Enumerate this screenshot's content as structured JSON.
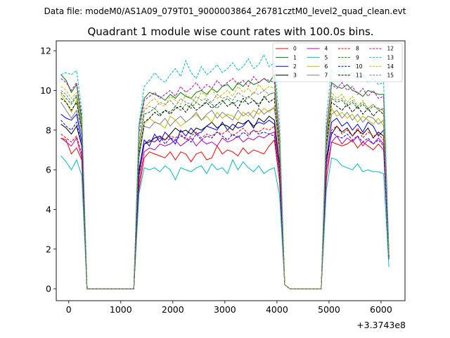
{
  "figure": {
    "suptitle": "Data file: modeM0/AS1A09_079T01_9000003864_26781cztM0_level2_quad_clean.evt"
  },
  "chart_data": {
    "type": "line",
    "title": "Quadrant 1 module wise count rates with 100.0s bins.",
    "xlabel": "",
    "ylabel": "",
    "offset_label": "+3.3743e8",
    "xlim": [
      -240,
      6460
    ],
    "ylim": [
      -0.6,
      12.5
    ],
    "x_ticks": [
      0,
      1000,
      2000,
      3000,
      4000,
      5000,
      6000
    ],
    "x_tick_labels": [
      "0",
      "1000",
      "2000",
      "3000",
      "4000",
      "5000",
      "6000"
    ],
    "y_ticks": [
      0,
      2,
      4,
      6,
      8,
      10,
      12
    ],
    "y_tick_labels": [
      "0",
      "2",
      "4",
      "6",
      "8",
      "10",
      "12"
    ],
    "grid": false,
    "legend_position": "upper-right",
    "legend_columns": 4,
    "x": [
      -150,
      -50,
      50,
      150,
      250,
      350,
      450,
      550,
      650,
      750,
      850,
      950,
      1050,
      1150,
      1250,
      1350,
      1450,
      1550,
      1650,
      1750,
      1850,
      1950,
      2050,
      2150,
      2250,
      2350,
      2450,
      2550,
      2650,
      2750,
      2850,
      2950,
      3050,
      3150,
      3250,
      3350,
      3450,
      3550,
      3650,
      3750,
      3850,
      3950,
      4050,
      4150,
      4250,
      4350,
      4450,
      4550,
      4650,
      4750,
      4850,
      4950,
      5050,
      5150,
      5250,
      5350,
      5450,
      5550,
      5650,
      5750,
      5850,
      5950,
      6050,
      6150
    ],
    "series": [
      {
        "name": "0",
        "color": "#ff0000",
        "dash": "solid",
        "values": [
          7.6,
          7.5,
          6.8,
          7.1,
          6.5,
          0,
          0,
          0,
          0,
          0,
          0,
          0,
          0,
          0,
          0,
          5.0,
          6.6,
          6.9,
          6.8,
          6.7,
          6.6,
          6.9,
          6.5,
          6.9,
          6.8,
          6.4,
          6.8,
          6.9,
          6.5,
          6.6,
          7.2,
          6.8,
          7.0,
          6.9,
          6.7,
          7.1,
          6.8,
          7.0,
          6.9,
          6.8,
          7.2,
          7.5,
          5.4,
          0.2,
          0,
          0,
          0,
          0,
          0,
          0,
          0,
          5.5,
          7.4,
          7.3,
          7.2,
          7.3,
          7.5,
          7.1,
          7.4,
          7.2,
          7.0,
          7.3,
          7.0,
          1.5
        ]
      },
      {
        "name": "1",
        "color": "#008000",
        "dash": "solid",
        "values": [
          10.8,
          10.5,
          9.9,
          10.3,
          8.5,
          0,
          0,
          0,
          0,
          0,
          0,
          0,
          0,
          0,
          0,
          8.2,
          9.6,
          9.9,
          9.8,
          9.7,
          9.5,
          9.8,
          9.6,
          9.9,
          9.7,
          9.6,
          9.9,
          10.0,
          9.8,
          10.1,
          9.9,
          10.2,
          10.3,
          10.0,
          10.4,
          10.2,
          10.5,
          10.3,
          10.4,
          10.6,
          10.4,
          10.8,
          7.5,
          0.2,
          0,
          0,
          0,
          0,
          0,
          0,
          0,
          8.0,
          10.4,
          10.2,
          10.1,
          10.3,
          10.0,
          9.9,
          9.7,
          10.0,
          9.9,
          9.8,
          9.8,
          1.8
        ]
      },
      {
        "name": "2",
        "color": "#0000ff",
        "dash": "solid",
        "values": [
          8.8,
          8.6,
          8.5,
          8.8,
          7.4,
          0,
          0,
          0,
          0,
          0,
          0,
          0,
          0,
          0,
          0,
          6.0,
          7.5,
          7.2,
          7.8,
          7.4,
          7.9,
          7.6,
          7.3,
          8.0,
          7.7,
          8.1,
          7.8,
          7.9,
          8.2,
          8.1,
          8.0,
          8.4,
          8.0,
          8.3,
          8.1,
          8.2,
          8.5,
          8.2,
          8.4,
          8.3,
          8.5,
          8.3,
          6.2,
          0.2,
          0,
          0,
          0,
          0,
          0,
          0,
          0,
          6.5,
          8.4,
          8.6,
          8.2,
          8.4,
          8.0,
          8.3,
          7.9,
          8.4,
          8.2,
          7.7,
          8.0,
          1.6
        ]
      },
      {
        "name": "3",
        "color": "#000000",
        "dash": "solid",
        "values": [
          8.3,
          8.1,
          7.8,
          8.2,
          7.2,
          0,
          0,
          0,
          0,
          0,
          0,
          0,
          0,
          0,
          0,
          5.8,
          7.3,
          7.4,
          7.6,
          7.7,
          7.5,
          7.8,
          8.1,
          7.9,
          8.0,
          7.8,
          8.1,
          8.0,
          8.2,
          8.4,
          8.1,
          8.3,
          8.2,
          8.0,
          8.4,
          8.3,
          8.5,
          8.1,
          8.6,
          8.4,
          8.7,
          8.5,
          6.3,
          0.2,
          0,
          0,
          0,
          0,
          0,
          0,
          0,
          6.6,
          7.8,
          8.2,
          7.9,
          8.1,
          7.7,
          8.0,
          7.8,
          8.1,
          7.6,
          7.9,
          7.7,
          1.6
        ]
      },
      {
        "name": "4",
        "color": "#bf00bf",
        "dash": "solid",
        "values": [
          7.6,
          7.4,
          7.2,
          7.6,
          6.6,
          0,
          0,
          0,
          0,
          0,
          0,
          0,
          0,
          0,
          0,
          5.3,
          6.9,
          7.1,
          7.0,
          7.3,
          7.2,
          7.3,
          7.5,
          7.2,
          7.4,
          7.6,
          7.2,
          7.5,
          7.3,
          7.4,
          7.2,
          7.6,
          7.4,
          7.5,
          7.7,
          7.4,
          7.6,
          7.5,
          7.7,
          7.6,
          7.8,
          7.9,
          5.8,
          0.2,
          0,
          0,
          0,
          0,
          0,
          0,
          0,
          6.0,
          7.4,
          7.7,
          7.3,
          7.6,
          7.4,
          7.7,
          7.2,
          7.5,
          7.3,
          7.6,
          7.3,
          1.5
        ]
      },
      {
        "name": "5",
        "color": "#00bfbf",
        "dash": "solid",
        "values": [
          6.7,
          6.4,
          6.0,
          6.5,
          5.7,
          0,
          0,
          0,
          0,
          0,
          0,
          0,
          0,
          0,
          0,
          4.8,
          6.1,
          6.0,
          6.1,
          5.9,
          6.2,
          6.0,
          5.5,
          6.1,
          6.0,
          5.9,
          6.1,
          6.2,
          5.8,
          6.3,
          6.0,
          6.1,
          5.8,
          6.5,
          6.0,
          6.4,
          6.1,
          5.9,
          6.2,
          5.8,
          6.0,
          6.1,
          4.7,
          0.2,
          0,
          0,
          0,
          0,
          0,
          0,
          0,
          5.0,
          6.6,
          6.5,
          6.2,
          6.1,
          6.0,
          6.3,
          5.9,
          6.0,
          5.9,
          5.9,
          5.8,
          1.1
        ]
      },
      {
        "name": "6",
        "color": "#bfbf00",
        "dash": "solid",
        "values": [
          9.8,
          9.4,
          8.9,
          9.5,
          8.0,
          0,
          0,
          0,
          0,
          0,
          0,
          0,
          0,
          0,
          0,
          6.9,
          8.3,
          8.6,
          8.4,
          8.3,
          8.1,
          8.7,
          8.5,
          8.2,
          8.4,
          8.6,
          8.8,
          8.5,
          8.7,
          8.4,
          8.9,
          8.6,
          8.8,
          8.7,
          8.5,
          8.9,
          8.7,
          9.0,
          8.8,
          9.1,
          8.9,
          9.2,
          6.9,
          0.2,
          0,
          0,
          0,
          0,
          0,
          0,
          0,
          7.2,
          9.1,
          8.7,
          8.9,
          8.6,
          8.8,
          8.4,
          8.7,
          8.5,
          8.3,
          8.6,
          8.2,
          1.6
        ]
      },
      {
        "name": "7",
        "color": "#808080",
        "dash": "solid",
        "values": [
          9.4,
          9.0,
          8.6,
          9.0,
          7.7,
          0,
          0,
          0,
          0,
          0,
          0,
          0,
          0,
          0,
          0,
          6.6,
          8.2,
          8.1,
          8.4,
          8.3,
          8.6,
          8.2,
          8.5,
          8.7,
          8.4,
          8.6,
          8.9,
          8.5,
          8.8,
          9.0,
          8.6,
          8.9,
          8.7,
          8.5,
          9.0,
          8.7,
          8.9,
          8.6,
          9.1,
          8.8,
          9.0,
          9.1,
          6.8,
          0.2,
          0,
          0,
          0,
          0,
          0,
          0,
          0,
          7.0,
          8.8,
          9.0,
          8.6,
          8.9,
          8.5,
          8.8,
          8.4,
          8.7,
          8.6,
          8.3,
          8.5,
          1.6
        ]
      },
      {
        "name": "8",
        "color": "#ff0000",
        "dash": "dashed",
        "values": [
          7.8,
          7.6,
          7.4,
          7.7,
          6.8,
          0,
          0,
          0,
          0,
          0,
          0,
          0,
          0,
          0,
          0,
          5.6,
          7.3,
          7.5,
          7.4,
          7.6,
          7.5,
          7.7,
          7.6,
          7.8,
          7.5,
          7.7,
          7.9,
          7.6,
          7.8,
          7.7,
          7.9,
          7.8,
          8.0,
          7.7,
          7.9,
          8.1,
          7.8,
          8.0,
          7.9,
          8.1,
          8.0,
          8.2,
          6.0,
          0.2,
          0,
          0,
          0,
          0,
          0,
          0,
          0,
          6.3,
          8.0,
          8.2,
          7.8,
          8.0,
          7.7,
          8.1,
          7.6,
          7.9,
          7.7,
          7.8,
          7.5,
          1.6
        ]
      },
      {
        "name": "9",
        "color": "#008000",
        "dash": "dashed",
        "values": [
          9.9,
          9.6,
          9.3,
          9.7,
          8.2,
          0,
          0,
          0,
          0,
          0,
          0,
          0,
          0,
          0,
          0,
          7.2,
          8.8,
          8.9,
          9.1,
          8.8,
          9.0,
          8.9,
          9.2,
          9.0,
          9.3,
          9.1,
          9.4,
          9.2,
          9.5,
          9.3,
          9.1,
          9.4,
          9.6,
          9.3,
          9.5,
          9.4,
          9.7,
          9.5,
          9.3,
          9.6,
          9.8,
          9.9,
          7.3,
          0.2,
          0,
          0,
          0,
          0,
          0,
          0,
          0,
          7.6,
          9.6,
          9.4,
          9.5,
          9.2,
          9.4,
          9.1,
          9.3,
          9.0,
          9.2,
          9.1,
          9.0,
          1.7
        ]
      },
      {
        "name": "10",
        "color": "#0000ff",
        "dash": "dashed",
        "values": [
          8.5,
          8.2,
          8.0,
          8.4,
          7.2,
          0,
          0,
          0,
          0,
          0,
          0,
          0,
          0,
          0,
          0,
          5.9,
          7.3,
          7.5,
          7.4,
          7.7,
          7.3,
          7.6,
          7.5,
          7.7,
          7.6,
          7.4,
          7.8,
          7.5,
          7.7,
          7.6,
          7.9,
          7.7,
          7.5,
          7.8,
          7.6,
          7.9,
          7.7,
          8.0,
          7.8,
          7.9,
          7.8,
          7.7,
          5.8,
          0.2,
          0,
          0,
          0,
          0,
          0,
          0,
          0,
          6.3,
          7.9,
          7.7,
          7.6,
          7.8,
          7.5,
          7.7,
          7.4,
          7.6,
          7.3,
          7.5,
          7.2,
          1.5
        ]
      },
      {
        "name": "11",
        "color": "#000000",
        "dash": "dashed",
        "values": [
          9.6,
          9.4,
          9.0,
          9.4,
          8.0,
          0,
          0,
          0,
          0,
          0,
          0,
          0,
          0,
          0,
          0,
          6.8,
          8.4,
          8.6,
          8.9,
          8.7,
          9.0,
          8.8,
          9.1,
          9.2,
          8.9,
          9.3,
          9.0,
          9.2,
          9.4,
          9.1,
          9.3,
          9.5,
          9.2,
          9.4,
          9.1,
          9.6,
          9.3,
          9.5,
          9.2,
          9.7,
          9.4,
          9.6,
          7.1,
          0.2,
          0,
          0,
          0,
          0,
          0,
          0,
          0,
          7.3,
          9.4,
          9.2,
          9.0,
          9.3,
          8.9,
          9.2,
          8.8,
          9.1,
          8.7,
          9.0,
          8.8,
          1.7
        ]
      },
      {
        "name": "12",
        "color": "#bf00bf",
        "dash": "dashed",
        "values": [
          10.6,
          10.4,
          10.0,
          10.4,
          8.7,
          0,
          0,
          0,
          0,
          0,
          0,
          0,
          0,
          0,
          0,
          7.8,
          9.5,
          9.7,
          9.9,
          9.6,
          9.8,
          10.0,
          9.7,
          10.2,
          9.9,
          10.1,
          10.4,
          10.0,
          10.3,
          10.1,
          10.5,
          10.2,
          10.4,
          10.6,
          10.3,
          10.5,
          10.2,
          10.7,
          10.4,
          10.6,
          10.5,
          10.4,
          7.8,
          0.2,
          0,
          0,
          0,
          0,
          0,
          0,
          0,
          8.0,
          10.3,
          10.1,
          10.4,
          10.0,
          10.2,
          9.8,
          10.1,
          9.7,
          10.0,
          9.6,
          9.7,
          1.8
        ]
      },
      {
        "name": "13",
        "color": "#00bfbf",
        "dash": "dashed",
        "values": [
          10.8,
          10.9,
          10.8,
          11.0,
          9.0,
          0,
          0,
          0,
          0,
          0,
          0,
          0,
          0,
          0,
          0,
          8.3,
          10.2,
          10.5,
          10.9,
          10.6,
          10.4,
          10.8,
          11.1,
          10.7,
          11.5,
          10.9,
          10.6,
          11.2,
          10.8,
          11.0,
          11.3,
          10.9,
          11.1,
          11.4,
          11.0,
          11.2,
          11.6,
          11.1,
          11.3,
          11.8,
          11.2,
          11.4,
          8.4,
          0.2,
          0,
          0,
          0,
          0,
          0,
          0,
          0,
          8.7,
          11.0,
          10.8,
          11.2,
          10.7,
          10.9,
          10.5,
          10.8,
          10.4,
          10.6,
          10.3,
          10.4,
          1.9
        ]
      },
      {
        "name": "14",
        "color": "#bfbf00",
        "dash": "dashed",
        "values": [
          10.2,
          10.0,
          9.6,
          9.9,
          8.4,
          0,
          0,
          0,
          0,
          0,
          0,
          0,
          0,
          0,
          0,
          7.4,
          9.1,
          9.4,
          9.6,
          9.3,
          9.2,
          9.7,
          9.5,
          9.3,
          9.8,
          9.6,
          9.4,
          9.9,
          9.7,
          10.1,
          9.6,
          9.8,
          10.0,
          9.7,
          10.2,
          9.9,
          10.1,
          9.8,
          10.3,
          10.0,
          10.2,
          10.1,
          7.5,
          0.2,
          0,
          0,
          0,
          0,
          0,
          0,
          0,
          7.8,
          9.9,
          9.6,
          9.8,
          9.4,
          9.7,
          9.2,
          9.5,
          9.1,
          9.3,
          9.0,
          8.9,
          1.7
        ]
      },
      {
        "name": "15",
        "color": "#808080",
        "dash": "dashed",
        "values": [
          10.0,
          9.8,
          9.4,
          9.8,
          8.3,
          0,
          0,
          0,
          0,
          0,
          0,
          0,
          0,
          0,
          0,
          7.2,
          9.0,
          9.2,
          9.1,
          9.4,
          9.3,
          9.5,
          9.2,
          9.6,
          9.4,
          9.3,
          9.7,
          9.5,
          9.6,
          9.4,
          9.8,
          9.6,
          9.7,
          9.5,
          9.9,
          9.7,
          9.6,
          9.9,
          9.8,
          10.0,
          9.8,
          9.9,
          7.3,
          0.2,
          0,
          0,
          0,
          0,
          0,
          0,
          0,
          7.6,
          9.7,
          9.5,
          9.6,
          9.3,
          9.5,
          9.2,
          9.4,
          9.1,
          9.3,
          9.0,
          9.1,
          1.7
        ]
      }
    ]
  }
}
